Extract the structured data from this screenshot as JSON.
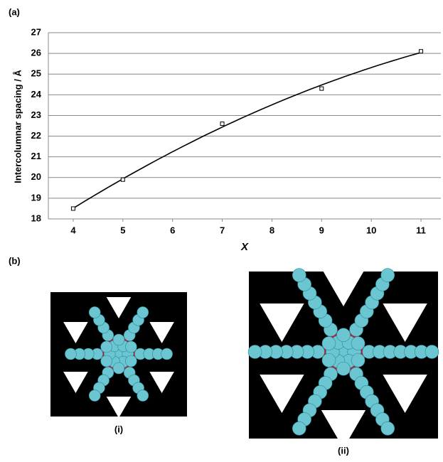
{
  "panel_labels": [
    "(a)",
    "(b)"
  ],
  "image_captions": [
    "(i)",
    "(ii)"
  ],
  "chart_data": {
    "type": "scatter",
    "x": [
      4,
      5,
      7,
      9,
      11
    ],
    "values": [
      18.5,
      19.9,
      22.6,
      24.3,
      26.1
    ],
    "color": "#000000",
    "trendline": "quadratic",
    "xlabel": "X",
    "ylabel": "Intercolumnar spacing / Å",
    "xlim": [
      3.5,
      11.4
    ],
    "xticks": [
      4,
      5,
      6,
      7,
      8,
      9,
      10,
      11
    ],
    "ylim": [
      18,
      27
    ],
    "yticks": [
      18,
      19,
      20,
      21,
      22,
      23,
      24,
      25,
      26,
      27
    ],
    "grid": true
  }
}
